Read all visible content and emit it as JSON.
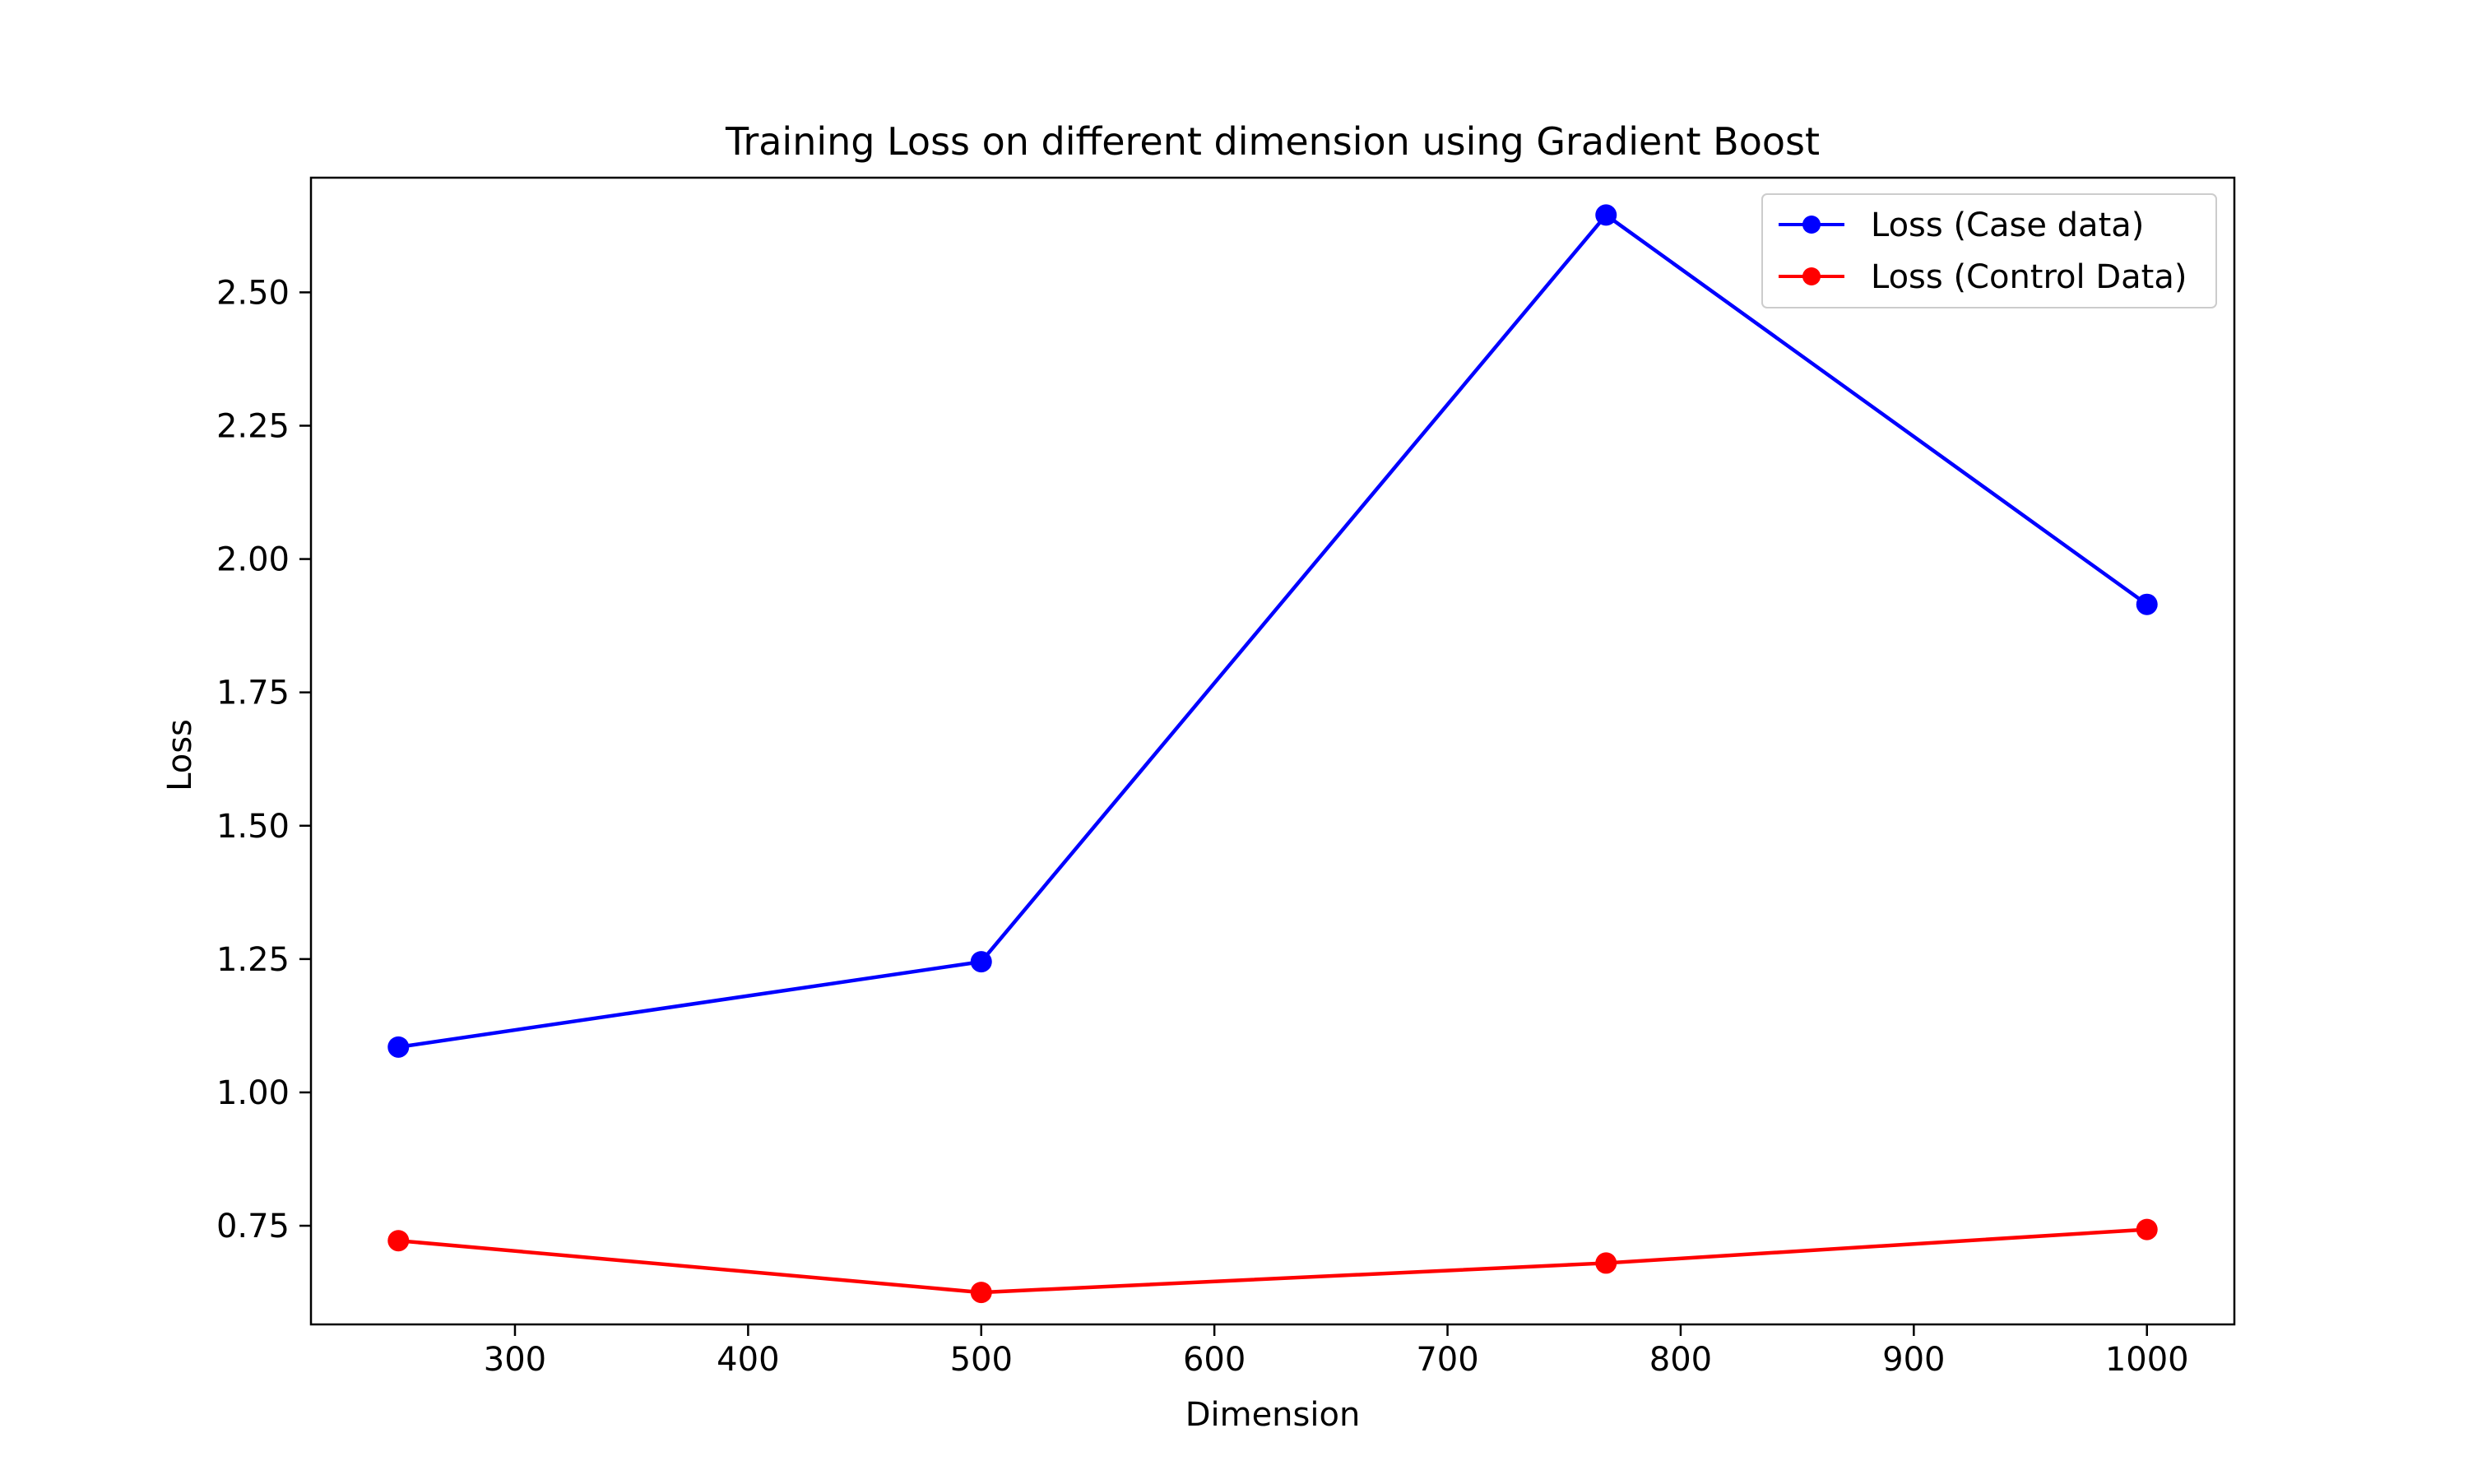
{
  "chart_data": {
    "type": "line",
    "title": "Training Loss on different dimension using Gradient Boost",
    "xlabel": "Dimension",
    "ylabel": "Loss",
    "x": [
      250,
      500,
      768,
      1000
    ],
    "xlim": [
      212.5,
      1037.5
    ],
    "ylim": [
      0.565,
      2.715
    ],
    "xticks": [
      300,
      400,
      500,
      600,
      700,
      800,
      900,
      1000
    ],
    "xtick_labels": [
      "300",
      "400",
      "500",
      "600",
      "700",
      "800",
      "900",
      "1000"
    ],
    "yticks": [
      0.75,
      1.0,
      1.25,
      1.5,
      1.75,
      2.0,
      2.25,
      2.5
    ],
    "ytick_labels": [
      "0.75",
      "1.00",
      "1.25",
      "1.50",
      "1.75",
      "2.00",
      "2.25",
      "2.50"
    ],
    "grid": false,
    "legend_position": "upper-right",
    "series": [
      {
        "name": "Loss (Case data)",
        "color": "#0000ff",
        "marker": "circle",
        "values": [
          1.085,
          1.245,
          2.645,
          1.915
        ]
      },
      {
        "name": "Loss (Control Data)",
        "color": "#ff0000",
        "marker": "circle",
        "values": [
          0.722,
          0.625,
          0.68,
          0.743
        ]
      }
    ]
  }
}
